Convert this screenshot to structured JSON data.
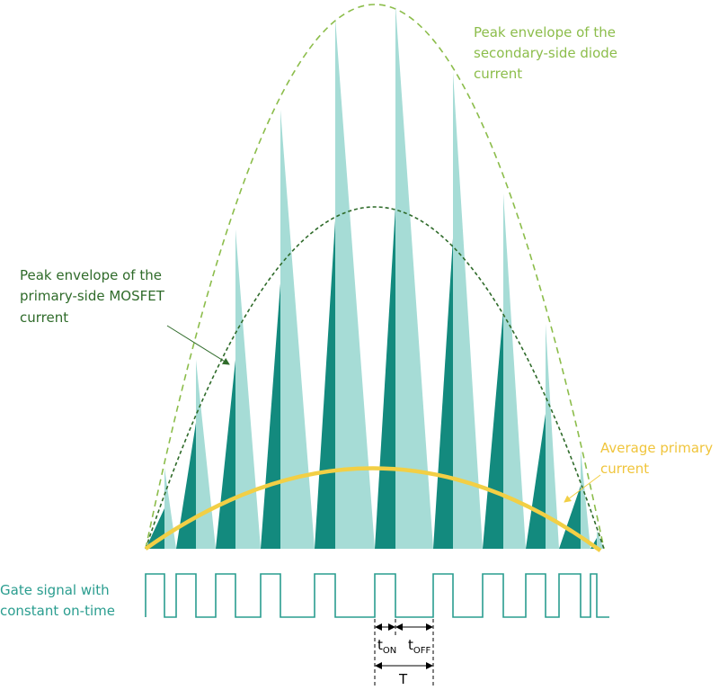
{
  "labels": {
    "secondary_envelope": [
      "Peak envelope of the",
      "secondary-side diode",
      "current"
    ],
    "primary_envelope": [
      "Peak envelope of the",
      "primary-side MOSFET",
      "current"
    ],
    "average_current": [
      "Average primary",
      "current"
    ],
    "gate_signal": [
      "Gate signal with",
      "constant on-time"
    ],
    "t_on": {
      "main": "t",
      "sub": "ON"
    },
    "t_off": {
      "main": "t",
      "sub": "OFF"
    },
    "period": "T"
  }
}
